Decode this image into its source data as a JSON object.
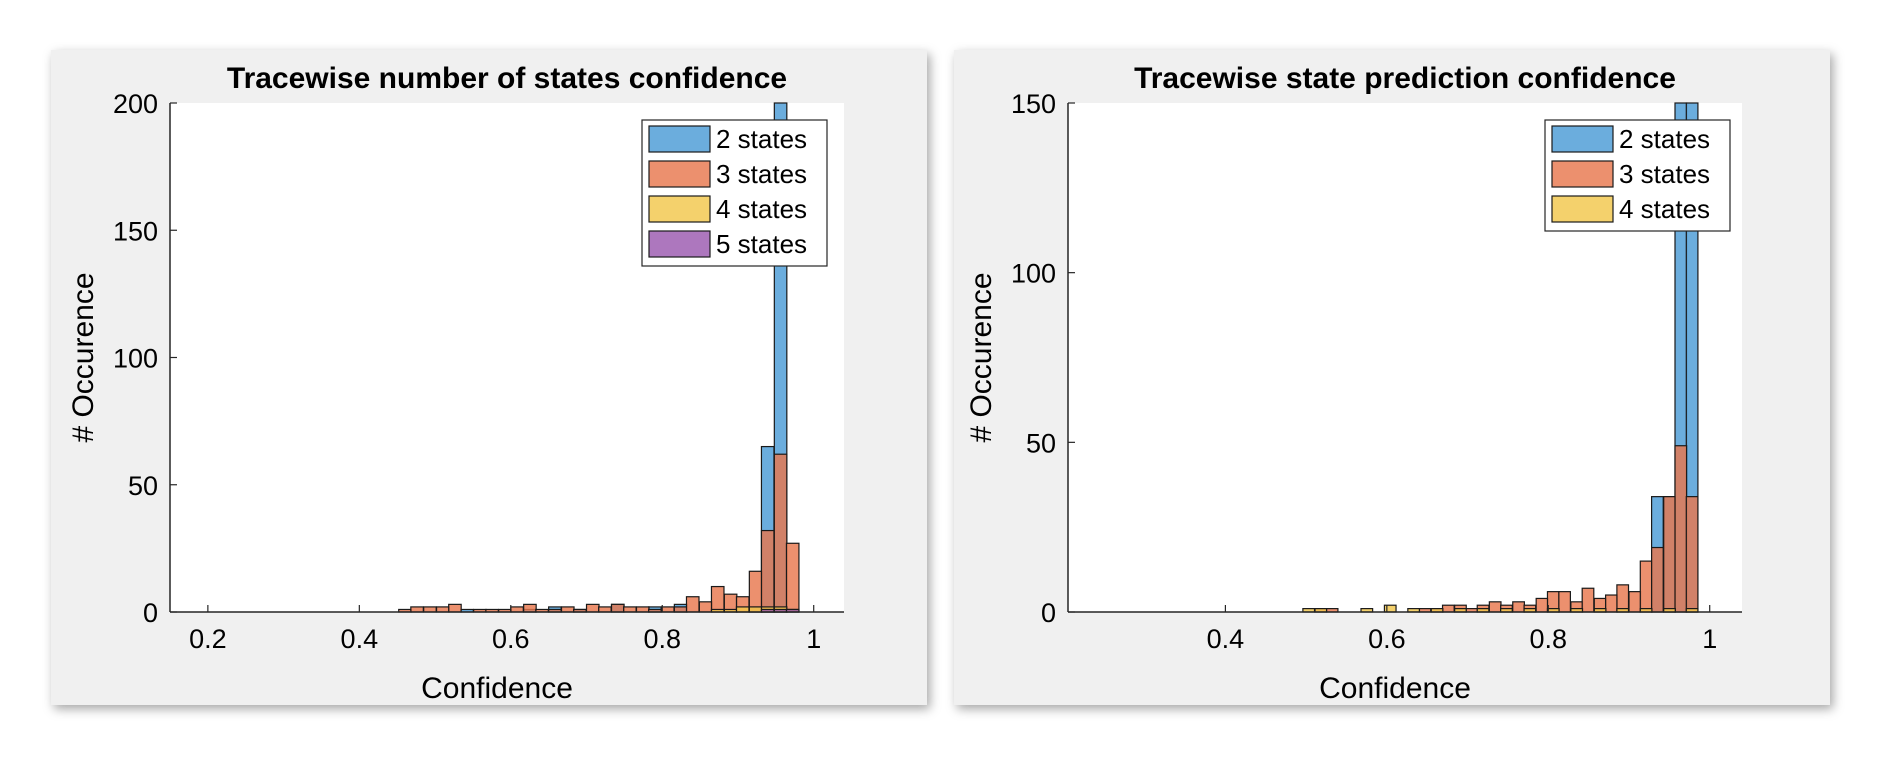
{
  "colors": {
    "panel_bg": "#f0f0f0",
    "axes_bg": "#ffffff",
    "series": [
      "#4a9bd6",
      "#e8784e",
      "#f2c74c",
      "#9b59b0"
    ],
    "edge": "#1a1a1a"
  },
  "chart_data": [
    {
      "type": "bar",
      "subtype": "overlaid-histogram",
      "title": "Tracewise number of states confidence",
      "xlabel": "Confidence",
      "ylabel": "# Occurence",
      "xlim": [
        0.15,
        1.04
      ],
      "ylim": [
        0,
        200
      ],
      "xticks": [
        0.2,
        0.4,
        0.6,
        0.8,
        1
      ],
      "xtick_labels": [
        "0.2",
        "0.4",
        "0.6",
        "0.8",
        "1"
      ],
      "yticks": [
        0,
        50,
        100,
        150,
        200
      ],
      "ytick_labels": [
        "0",
        "50",
        "100",
        "150",
        "200"
      ],
      "legend_position": "top-right",
      "bin_width": 0.0165,
      "series": [
        {
          "name": "2 states",
          "bins": [
            [
              0.816,
              3
            ],
            [
              0.782,
              2
            ],
            [
              0.733,
              3
            ],
            [
              0.683,
              1
            ],
            [
              0.65,
              2
            ],
            [
              0.617,
              1
            ],
            [
              0.534,
              1
            ],
            [
              0.915,
              2
            ],
            [
              0.931,
              65
            ],
            [
              0.948,
              200
            ]
          ]
        },
        {
          "name": "3 states",
          "bins": [
            [
              0.452,
              1
            ],
            [
              0.468,
              2
            ],
            [
              0.485,
              2
            ],
            [
              0.502,
              2
            ],
            [
              0.518,
              3
            ],
            [
              0.551,
              1
            ],
            [
              0.567,
              1
            ],
            [
              0.584,
              1
            ],
            [
              0.6,
              2
            ],
            [
              0.617,
              3
            ],
            [
              0.633,
              1
            ],
            [
              0.65,
              1
            ],
            [
              0.667,
              2
            ],
            [
              0.683,
              1
            ],
            [
              0.7,
              3
            ],
            [
              0.716,
              2
            ],
            [
              0.733,
              3
            ],
            [
              0.749,
              2
            ],
            [
              0.766,
              2
            ],
            [
              0.782,
              1
            ],
            [
              0.799,
              2
            ],
            [
              0.816,
              2
            ],
            [
              0.832,
              6
            ],
            [
              0.849,
              4
            ],
            [
              0.865,
              10
            ],
            [
              0.882,
              7
            ],
            [
              0.898,
              6
            ],
            [
              0.915,
              16
            ],
            [
              0.931,
              32
            ],
            [
              0.948,
              62
            ],
            [
              0.964,
              27
            ]
          ]
        },
        {
          "name": "4 states",
          "bins": [
            [
              0.865,
              1
            ],
            [
              0.882,
              1
            ],
            [
              0.898,
              2
            ],
            [
              0.915,
              2
            ],
            [
              0.931,
              2
            ],
            [
              0.948,
              2
            ],
            [
              0.964,
              1
            ]
          ]
        },
        {
          "name": "5 states",
          "bins": [
            [
              0.931,
              1
            ],
            [
              0.948,
              1
            ],
            [
              0.964,
              1
            ]
          ]
        }
      ]
    },
    {
      "type": "bar",
      "subtype": "overlaid-histogram",
      "title": "Tracewise state prediction confidence",
      "xlabel": "Confidence",
      "ylabel": "# Occurence",
      "xlim": [
        0.205,
        1.04
      ],
      "ylim": [
        0,
        150
      ],
      "xticks": [
        0.4,
        0.6,
        0.8,
        1
      ],
      "xtick_labels": [
        "0.4",
        "0.6",
        "0.8",
        "1"
      ],
      "yticks": [
        0,
        50,
        100,
        150
      ],
      "ytick_labels": [
        "0",
        "50",
        "100",
        "150"
      ],
      "legend_position": "top-right",
      "bin_width": 0.0144,
      "series": [
        {
          "name": "2 states",
          "bins": [
            [
              0.928,
              34
            ],
            [
              0.943,
              34
            ],
            [
              0.957,
              150
            ],
            [
              0.971,
              150
            ]
          ]
        },
        {
          "name": "3 states",
          "bins": [
            [
              0.511,
              1
            ],
            [
              0.525,
              1
            ],
            [
              0.64,
              1
            ],
            [
              0.655,
              1
            ],
            [
              0.669,
              2
            ],
            [
              0.684,
              2
            ],
            [
              0.698,
              1
            ],
            [
              0.712,
              2
            ],
            [
              0.727,
              3
            ],
            [
              0.741,
              2
            ],
            [
              0.756,
              3
            ],
            [
              0.77,
              2
            ],
            [
              0.785,
              4
            ],
            [
              0.799,
              6
            ],
            [
              0.813,
              6
            ],
            [
              0.828,
              3
            ],
            [
              0.842,
              7
            ],
            [
              0.857,
              4
            ],
            [
              0.871,
              5
            ],
            [
              0.885,
              8
            ],
            [
              0.9,
              6
            ],
            [
              0.914,
              15
            ],
            [
              0.928,
              19
            ],
            [
              0.943,
              34
            ],
            [
              0.957,
              49
            ],
            [
              0.971,
              34
            ]
          ]
        },
        {
          "name": "4 states",
          "bins": [
            [
              0.496,
              1
            ],
            [
              0.511,
              1
            ],
            [
              0.568,
              1
            ],
            [
              0.597,
              2
            ],
            [
              0.626,
              1
            ],
            [
              0.655,
              1
            ],
            [
              0.684,
              1
            ],
            [
              0.712,
              1
            ],
            [
              0.741,
              1
            ],
            [
              0.77,
              1
            ],
            [
              0.799,
              1
            ],
            [
              0.828,
              1
            ],
            [
              0.857,
              1
            ],
            [
              0.885,
              1
            ],
            [
              0.914,
              1
            ],
            [
              0.943,
              1
            ],
            [
              0.971,
              1
            ]
          ]
        }
      ]
    }
  ]
}
